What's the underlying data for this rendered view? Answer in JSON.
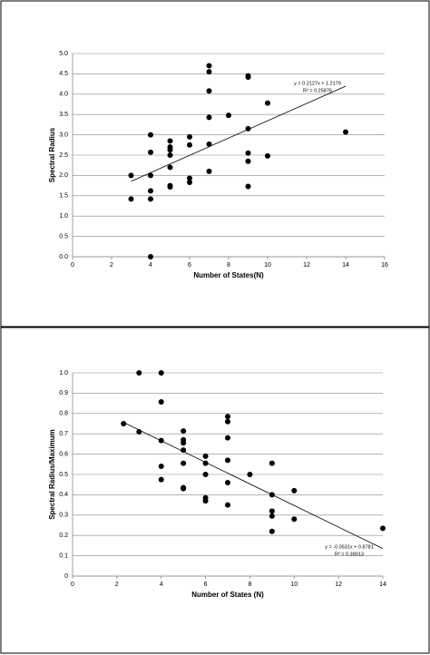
{
  "chart_data": [
    {
      "type": "scatter",
      "x_label": "Number of States(N)",
      "y_label": "Spectral Radius",
      "annotation": [
        "y = 0.2127x + 1.2179",
        "R² = 0.25876"
      ],
      "color": "#000000",
      "grid": true,
      "xlim": [
        0,
        16
      ],
      "ylim": [
        0,
        5
      ],
      "xticks": [
        0,
        2,
        4,
        6,
        8,
        10,
        12,
        14,
        16
      ],
      "yticks": [
        {
          "value": 0,
          "label": "0.0"
        },
        0.5,
        {
          "value": 1,
          "label": "1.0"
        },
        1.5,
        {
          "value": 2,
          "label": "2.0"
        },
        2.5,
        {
          "value": 3,
          "label": "3.0"
        },
        3.5,
        {
          "value": 4,
          "label": "4.0"
        },
        4.5,
        {
          "value": 5,
          "label": "5.0"
        }
      ],
      "x": [
        3,
        3,
        4,
        4,
        4,
        4,
        4,
        4,
        5,
        5,
        5,
        5,
        5,
        5,
        5,
        6,
        6,
        6,
        6,
        7,
        7,
        7,
        7,
        7,
        7,
        8,
        9,
        9,
        9,
        9,
        9,
        9,
        10,
        10,
        14
      ],
      "y": [
        2.0,
        1.42,
        3.0,
        2.57,
        2.0,
        1.62,
        1.42,
        0.0,
        2.85,
        2.7,
        2.63,
        2.5,
        2.2,
        1.75,
        1.72,
        2.95,
        2.75,
        1.93,
        1.83,
        4.7,
        4.55,
        4.08,
        3.43,
        2.77,
        2.1,
        3.48,
        4.45,
        4.42,
        3.15,
        2.55,
        2.35,
        1.73,
        3.78,
        2.48,
        3.07
      ],
      "trendline": {
        "x": [
          3,
          14
        ],
        "y": [
          1.856,
          4.196
        ]
      }
    },
    {
      "type": "scatter",
      "x_label": "Number of States (N)",
      "y_label": "Spectral Radius/Maximum",
      "annotation": [
        "y = -0.0531x + 0.8781",
        "R² = 0.39013"
      ],
      "color": "#000000",
      "grid": true,
      "xlim": [
        0,
        14
      ],
      "ylim": [
        0,
        1
      ],
      "xticks": [
        0,
        2,
        4,
        6,
        8,
        10,
        12,
        14
      ],
      "yticks": [
        0,
        0.1,
        0.2,
        0.3,
        0.4,
        0.5,
        0.6,
        0.7,
        0.8,
        0.9,
        {
          "value": 1,
          "label": "1.0"
        }
      ],
      "x": [
        2.3,
        3,
        3,
        4,
        4,
        4,
        4,
        4,
        5,
        5,
        5,
        5,
        5,
        5,
        5,
        6,
        6,
        6,
        6,
        6,
        7,
        7,
        7,
        7,
        7,
        7,
        8,
        9,
        9,
        9,
        9,
        9,
        10,
        10,
        14
      ],
      "y": [
        0.75,
        1.0,
        0.71,
        1.0,
        0.857,
        0.667,
        0.54,
        0.475,
        0.714,
        0.67,
        0.655,
        0.62,
        0.555,
        0.435,
        0.43,
        0.59,
        0.555,
        0.5,
        0.385,
        0.37,
        0.785,
        0.76,
        0.68,
        0.57,
        0.46,
        0.35,
        0.5,
        0.555,
        0.4,
        0.32,
        0.295,
        0.22,
        0.42,
        0.28,
        0.235
      ],
      "trendline": {
        "x": [
          2.3,
          14
        ],
        "y": [
          0.756,
          0.135
        ]
      }
    }
  ]
}
